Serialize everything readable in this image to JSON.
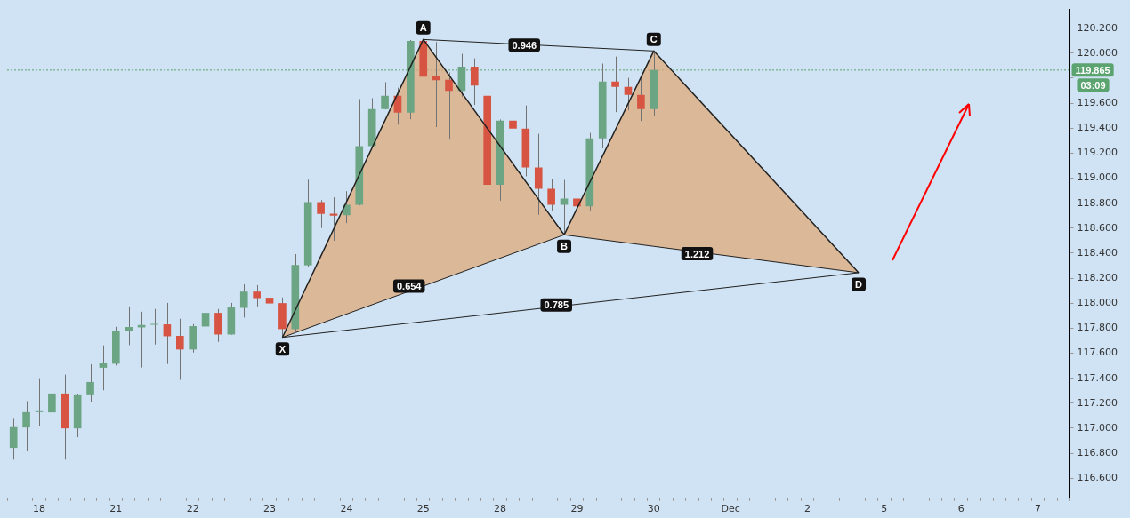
{
  "chart_data": {
    "type": "candlestick",
    "categories": [
      null,
      null,
      "18",
      null,
      null,
      null,
      null,
      null,
      "21",
      null,
      null,
      null,
      null,
      null,
      "22",
      null,
      null,
      null,
      null,
      null,
      "23",
      null,
      null,
      null,
      null,
      null,
      "24",
      null,
      null,
      null,
      null,
      null,
      "25",
      null,
      null,
      null,
      null,
      null,
      "28",
      null,
      null,
      null,
      null,
      null,
      "29",
      null,
      null,
      null,
      null,
      null,
      "30",
      null,
      null,
      null,
      null,
      null,
      "Dec",
      null,
      null,
      null,
      null,
      null,
      "2",
      null,
      null,
      null,
      null,
      null,
      "5",
      null,
      null,
      null,
      null,
      null,
      "6",
      null,
      null,
      null,
      null,
      null,
      "7",
      null,
      null
    ],
    "ohlc": [
      [
        116.843,
        117.075,
        116.749,
        117.009
      ],
      [
        117.006,
        117.217,
        116.815,
        117.129
      ],
      [
        117.129,
        117.401,
        117.018,
        117.129
      ],
      [
        117.127,
        117.472,
        117.07,
        117.278
      ],
      [
        117.278,
        117.429,
        116.749,
        116.999
      ],
      [
        116.999,
        117.273,
        116.928,
        117.264
      ],
      [
        117.264,
        117.512,
        117.212,
        117.37
      ],
      [
        117.484,
        117.663,
        117.304,
        117.519
      ],
      [
        117.516,
        117.812,
        117.502,
        117.781
      ],
      [
        117.779,
        117.975,
        117.665,
        117.81
      ],
      [
        117.807,
        117.932,
        117.486,
        117.826
      ],
      [
        117.828,
        117.954,
        117.67,
        117.828
      ],
      [
        117.831,
        118.003,
        117.514,
        117.736
      ],
      [
        117.739,
        117.876,
        117.387,
        117.63
      ],
      [
        117.63,
        117.833,
        117.606,
        117.817
      ],
      [
        117.814,
        117.968,
        117.642,
        117.923
      ],
      [
        117.923,
        117.954,
        117.691,
        117.75
      ],
      [
        117.75,
        118.003,
        117.748,
        117.966
      ],
      [
        117.963,
        118.152,
        117.885,
        118.093
      ],
      [
        118.093,
        118.145,
        117.975,
        118.041
      ],
      [
        118.044,
        118.067,
        117.927,
        117.998
      ],
      [
        118.001,
        118.046,
        117.727,
        117.793
      ],
      [
        117.793,
        118.393,
        117.762,
        118.306
      ],
      [
        118.303,
        118.988,
        118.294,
        118.809
      ],
      [
        118.809,
        118.825,
        118.601,
        118.714
      ],
      [
        118.717,
        118.847,
        118.499,
        118.7
      ],
      [
        118.703,
        118.896,
        118.641,
        118.788
      ],
      [
        118.788,
        119.633,
        118.783,
        119.256
      ],
      [
        119.256,
        119.64,
        119.251,
        119.553
      ],
      [
        119.553,
        119.768,
        119.55,
        119.659
      ],
      [
        119.659,
        119.725,
        119.428,
        119.525
      ],
      [
        119.525,
        120.106,
        119.472,
        120.099
      ],
      [
        120.099,
        120.11,
        119.777,
        119.813
      ],
      [
        119.815,
        120.089,
        119.409,
        119.784
      ],
      [
        119.787,
        119.846,
        119.309,
        119.699
      ],
      [
        119.699,
        119.995,
        119.652,
        119.893
      ],
      [
        119.893,
        119.959,
        119.586,
        119.742
      ],
      [
        119.659,
        119.782,
        118.941,
        118.948
      ],
      [
        118.948,
        119.47,
        118.82,
        119.461
      ],
      [
        119.461,
        119.52,
        119.168,
        119.397
      ],
      [
        119.397,
        119.582,
        119.015,
        119.085
      ],
      [
        119.085,
        119.355,
        118.707,
        118.915
      ],
      [
        118.915,
        118.995,
        118.742,
        118.788
      ],
      [
        118.788,
        118.986,
        118.547,
        118.837
      ],
      [
        118.837,
        118.882,
        118.622,
        118.774
      ],
      [
        118.774,
        119.362,
        118.742,
        119.319
      ],
      [
        119.319,
        119.917,
        119.239,
        119.773
      ],
      [
        119.773,
        119.973,
        119.529,
        119.73
      ],
      [
        119.73,
        119.803,
        119.543,
        119.667
      ],
      [
        119.667,
        119.818,
        119.458,
        119.553
      ],
      [
        119.553,
        120.018,
        119.501,
        119.865
      ],
      null,
      null,
      null,
      null,
      null,
      null,
      null,
      null,
      null,
      null,
      null,
      null,
      null,
      null,
      null,
      null,
      null,
      null,
      null,
      null,
      null,
      null,
      null,
      null,
      null,
      null,
      null,
      null,
      null,
      null,
      null,
      null
    ],
    "colors": [
      "#6ba583",
      "#6ba583",
      "#6ba583",
      "#6ba583",
      "#d75442",
      "#6ba583",
      "#6ba583",
      "#6ba583",
      "#6ba583",
      "#6ba583",
      "#6ba583",
      "#6ba583",
      "#d75442",
      "#d75442",
      "#6ba583",
      "#6ba583",
      "#d75442",
      "#6ba583",
      "#6ba583",
      "#d75442",
      "#d75442",
      "#d75442",
      "#6ba583",
      "#6ba583",
      "#d75442",
      "#d75442",
      "#6ba583",
      "#6ba583",
      "#6ba583",
      "#6ba583",
      "#d75442",
      "#6ba583",
      "#d75442",
      "#d75442",
      "#d75442",
      "#6ba583",
      "#d75442",
      "#d75442",
      "#6ba583",
      "#d75442",
      "#d75442",
      "#d75442",
      "#d75442",
      "#6ba583",
      "#d75442",
      "#6ba583",
      "#6ba583",
      "#d75442",
      "#d75442",
      "#d75442",
      "#6ba583",
      null,
      null,
      null,
      null,
      null,
      null,
      null,
      null,
      null,
      null,
      null,
      null,
      null,
      null,
      null,
      null,
      null,
      null,
      null,
      null,
      null,
      null,
      null,
      null,
      null,
      null,
      null,
      null,
      null,
      null,
      null,
      null
    ],
    "series": [
      {
        "type": "line",
        "color": "#222222",
        "values": [
          null,
          null,
          null,
          null,
          null,
          null,
          null,
          null,
          null,
          null,
          null,
          null,
          null,
          null,
          null,
          null,
          null,
          null,
          null,
          null,
          null,
          117.727,
          null,
          null,
          null,
          null,
          null,
          null,
          null,
          null,
          null,
          null,
          120.11,
          null,
          null,
          null,
          null,
          null,
          null,
          null,
          null,
          null,
          null,
          118.547,
          null,
          null,
          null,
          null,
          null,
          null,
          120.018,
          null,
          null,
          null,
          null,
          null,
          null,
          null,
          null,
          null,
          null,
          null,
          null,
          null,
          null,
          null,
          118.244,
          null,
          null,
          null,
          null,
          null,
          null,
          null,
          null,
          null,
          null,
          null,
          null,
          null,
          null,
          null,
          null
        ],
        "upper": [
          null,
          null,
          null,
          null,
          null,
          null,
          null,
          null,
          null,
          null,
          null,
          null,
          null,
          null,
          null,
          null,
          null,
          null,
          null,
          null,
          null,
          117.727,
          null,
          null,
          null,
          null,
          null,
          null,
          null,
          null,
          null,
          null,
          120.11,
          null,
          null,
          null,
          null,
          null,
          null,
          null,
          null,
          null,
          null,
          118.547,
          null,
          null,
          null,
          null,
          null,
          null,
          120.018,
          null,
          null,
          null,
          null,
          null,
          null,
          null,
          null,
          null,
          null,
          null,
          null,
          null,
          null,
          null,
          118.244,
          null,
          null,
          null,
          null,
          null,
          null,
          null,
          null,
          null,
          null,
          null,
          null,
          null,
          null,
          null,
          null
        ],
        "lower": [
          null,
          null,
          null,
          null,
          null,
          null,
          null,
          null,
          null,
          null,
          null,
          null,
          null,
          null,
          null,
          null,
          null,
          null,
          null,
          null,
          null,
          117.727,
          null,
          null,
          null,
          null,
          null,
          null,
          null,
          null,
          null,
          null,
          118.137,
          null,
          null,
          null,
          null,
          null,
          null,
          null,
          null,
          null,
          null,
          118.547,
          null,
          null,
          null,
          null,
          null,
          null,
          118.455,
          null,
          null,
          null,
          null,
          null,
          null,
          null,
          null,
          null,
          null,
          null,
          null,
          null,
          null,
          null,
          118.244,
          null,
          null,
          null,
          null,
          null,
          null,
          null,
          null,
          null,
          null,
          null,
          null,
          null,
          null,
          null,
          null
        ]
      }
    ],
    "ylim": [
      116.44,
      120.35
    ],
    "yticks": [
      {
        "value": 116.6,
        "label": "116.600"
      },
      {
        "value": 116.8,
        "label": "116.800"
      },
      {
        "value": 117,
        "label": "117.000"
      },
      {
        "value": 117.2,
        "label": "117.200"
      },
      {
        "value": 117.4,
        "label": "117.400"
      },
      {
        "value": 117.6,
        "label": "117.600"
      },
      {
        "value": 117.8,
        "label": "117.800"
      },
      {
        "value": 118,
        "label": "118.000"
      },
      {
        "value": 118.2,
        "label": "118.200"
      },
      {
        "value": 118.4,
        "label": "118.400"
      },
      {
        "value": 118.6,
        "label": "118.600"
      },
      {
        "value": 118.8,
        "label": "118.800"
      },
      {
        "value": 119,
        "label": "119.000"
      },
      {
        "value": 119.2,
        "label": "119.200"
      },
      {
        "value": 119.4,
        "label": "119.400"
      },
      {
        "value": 119.6,
        "label": "119.600"
      },
      {
        "value": 119.8,
        "label": null
      },
      {
        "value": 120,
        "label": "120.000"
      },
      {
        "value": 120.2,
        "label": "120.200"
      }
    ],
    "ref_lines": [
      {
        "axis": "y",
        "value": 119.865,
        "label": "119.865",
        "color": "#5ba36f",
        "line_style": "dotted"
      }
    ],
    "annotations": [
      {
        "text": "X",
        "y": 117.727
      },
      {
        "text": "A",
        "y": 120.11
      },
      {
        "text": "B",
        "y": 118.547
      },
      {
        "text": "C",
        "y": 120.018
      },
      {
        "text": "D",
        "y": 118.244
      },
      {
        "text": "0.654",
        "y": 118.137
      },
      {
        "text": "0.946",
        "y": 120.064
      },
      {
        "text": "1.212",
        "y": 118.396
      },
      {
        "text": "0.785",
        "y": 117.986
      },
      "03:09"
    ]
  }
}
